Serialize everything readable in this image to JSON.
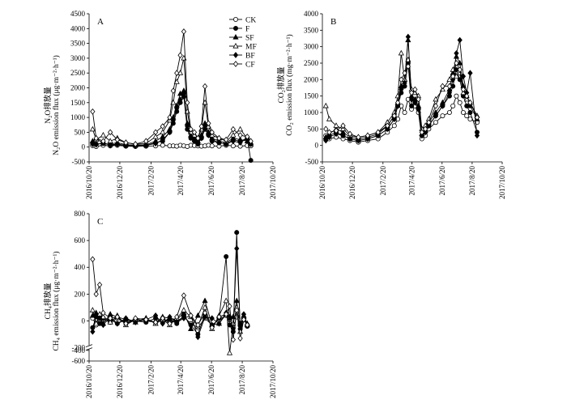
{
  "figure": {
    "legend": {
      "placement": "top-right of panel A",
      "entries": [
        {
          "name": "CK",
          "marker": "open-circle"
        },
        {
          "name": "F",
          "marker": "filled-circle"
        },
        {
          "name": "SF",
          "marker": "filled-triangle"
        },
        {
          "name": "MF",
          "marker": "open-triangle"
        },
        {
          "name": "BF",
          "marker": "filled-diamond"
        },
        {
          "name": "CF",
          "marker": "open-diamond"
        }
      ]
    }
  },
  "chart_data": [
    {
      "panel": "A",
      "type": "line",
      "ylabel_cn": "N₂O排放量",
      "ylabel_en": "N₂O emission flux (μg·m⁻²·h⁻¹)",
      "ylim": [
        -500,
        4500
      ],
      "yticks": [
        "-500",
        "0",
        "500",
        "1000",
        "1500",
        "2000",
        "2500",
        "3000",
        "3500",
        "4000",
        "4500"
      ],
      "xticks": [
        "2016/10/20",
        "2016/12/20",
        "2017/2/20",
        "2017/4/20",
        "2017/6/20",
        "2017/8/20",
        "2017/10/20"
      ],
      "grid": false,
      "x": [
        "2016/10/27",
        "2016/11/3",
        "2016/11/17",
        "2016/12/1",
        "2016/12/15",
        "2017/1/1",
        "2017/1/20",
        "2017/2/10",
        "2017/3/1",
        "2017/3/15",
        "2017/3/29",
        "2017/4/5",
        "2017/4/12",
        "2017/4/19",
        "2017/4/26",
        "2017/5/3",
        "2017/5/10",
        "2017/5/17",
        "2017/5/24",
        "2017/5/31",
        "2017/6/7",
        "2017/6/14",
        "2017/6/21",
        "2017/7/5",
        "2017/7/19",
        "2017/8/2",
        "2017/8/16",
        "2017/8/30",
        "2017/9/6"
      ],
      "series": [
        {
          "name": "CK",
          "values": [
            50,
            20,
            60,
            40,
            60,
            30,
            20,
            30,
            40,
            60,
            40,
            40,
            30,
            60,
            40,
            20,
            60,
            50,
            40,
            30,
            40,
            60,
            40,
            30,
            60,
            40,
            30,
            50,
            40
          ]
        },
        {
          "name": "F",
          "values": [
            150,
            100,
            120,
            80,
            100,
            60,
            80,
            60,
            150,
            200,
            500,
            800,
            1200,
            1500,
            1700,
            600,
            300,
            200,
            100,
            300,
            600,
            400,
            200,
            150,
            100,
            250,
            200,
            300,
            -450
          ]
        },
        {
          "name": "SF",
          "values": [
            200,
            300,
            120,
            100,
            150,
            80,
            60,
            80,
            200,
            350,
            600,
            1000,
            1400,
            1800,
            1900,
            800,
            400,
            300,
            200,
            400,
            800,
            500,
            300,
            200,
            150,
            300,
            250,
            200,
            100
          ]
        },
        {
          "name": "MF",
          "values": [
            600,
            250,
            400,
            200,
            300,
            150,
            100,
            120,
            350,
            500,
            900,
            1500,
            2200,
            2500,
            3000,
            1200,
            500,
            400,
            300,
            600,
            1500,
            700,
            400,
            300,
            200,
            400,
            600,
            300,
            150
          ]
        },
        {
          "name": "BF",
          "values": [
            100,
            80,
            150,
            60,
            90,
            50,
            40,
            60,
            120,
            250,
            500,
            900,
            1300,
            1600,
            1800,
            700,
            350,
            250,
            150,
            300,
            700,
            400,
            250,
            150,
            100,
            200,
            150,
            300,
            100
          ]
        },
        {
          "name": "CF",
          "values": [
            1200,
            300,
            200,
            500,
            250,
            150,
            100,
            200,
            500,
            700,
            1000,
            1900,
            2500,
            3100,
            3900,
            1500,
            600,
            500,
            300,
            700,
            2050,
            800,
            500,
            300,
            250,
            600,
            400,
            350,
            200
          ]
        }
      ]
    },
    {
      "panel": "B",
      "type": "line",
      "ylabel_cn": "CO₂排放量",
      "ylabel_en": "CO₂ emission flux (mg·m⁻²·h⁻¹)",
      "ylim": [
        -500,
        4000
      ],
      "yticks": [
        "-500",
        "0",
        "500",
        "1000",
        "1500",
        "2000",
        "2500",
        "3000",
        "3500",
        "4000"
      ],
      "xticks": [
        "2016/10/20",
        "2016/12/20",
        "2017/2/20",
        "2017/4/20",
        "2017/6/20",
        "2017/8/20",
        "2017/10/20"
      ],
      "grid": false,
      "x": [
        "2016/10/27",
        "2016/11/3",
        "2016/11/17",
        "2016/12/1",
        "2016/12/15",
        "2017/1/1",
        "2017/1/20",
        "2017/2/10",
        "2017/3/1",
        "2017/3/15",
        "2017/3/22",
        "2017/3/29",
        "2017/4/5",
        "2017/4/12",
        "2017/4/19",
        "2017/4/26",
        "2017/5/3",
        "2017/5/10",
        "2017/5/17",
        "2017/5/24",
        "2017/6/7",
        "2017/6/21",
        "2017/7/5",
        "2017/7/12",
        "2017/7/19",
        "2017/7/26",
        "2017/8/2",
        "2017/8/9",
        "2017/8/16",
        "2017/8/30"
      ],
      "series": [
        {
          "name": "CK",
          "values": [
            300,
            200,
            250,
            200,
            150,
            100,
            150,
            200,
            400,
            600,
            800,
            1200,
            1000,
            1400,
            1100,
            1200,
            1000,
            200,
            300,
            500,
            700,
            900,
            1000,
            1200,
            1500,
            1300,
            1000,
            900,
            800,
            700
          ]
        },
        {
          "name": "F",
          "values": [
            200,
            300,
            400,
            300,
            200,
            150,
            200,
            300,
            500,
            800,
            1200,
            1600,
            1800,
            2500,
            1200,
            1300,
            1100,
            300,
            400,
            600,
            900,
            1200,
            1500,
            1800,
            2300,
            2000,
            1500,
            1200,
            1000,
            400
          ]
        },
        {
          "name": "SF",
          "values": [
            250,
            350,
            500,
            400,
            250,
            200,
            250,
            350,
            600,
            900,
            1300,
            1800,
            2000,
            3200,
            1500,
            1400,
            1200,
            350,
            450,
            700,
            1000,
            1300,
            1700,
            2200,
            2700,
            2500,
            1800,
            1500,
            1200,
            800
          ]
        },
        {
          "name": "MF",
          "values": [
            1200,
            800,
            600,
            500,
            300,
            250,
            300,
            400,
            700,
            1000,
            1500,
            2800,
            2000,
            2600,
            1700,
            1600,
            1500,
            500,
            600,
            800,
            1400,
            1700,
            2000,
            2300,
            2100,
            2200,
            1600,
            1400,
            1300,
            900
          ]
        },
        {
          "name": "BF",
          "values": [
            150,
            250,
            350,
            300,
            200,
            150,
            200,
            300,
            500,
            800,
            1200,
            1700,
            1900,
            3300,
            1400,
            1300,
            1100,
            300,
            400,
            600,
            900,
            1200,
            1600,
            2000,
            2800,
            3200,
            2100,
            1600,
            2200,
            300
          ]
        },
        {
          "name": "CF",
          "values": [
            500,
            400,
            450,
            600,
            350,
            250,
            300,
            400,
            600,
            900,
            1300,
            2000,
            2200,
            2400,
            1600,
            1700,
            1400,
            400,
            500,
            700,
            1200,
            1800,
            1800,
            2100,
            2500,
            2300,
            1700,
            1500,
            1300,
            850
          ]
        }
      ]
    },
    {
      "panel": "C",
      "type": "line",
      "ylabel_cn": "CH₄排放量",
      "ylabel_en": "CH₄ emission flux (μg·m⁻²·h⁻¹)",
      "ylim": [
        -600,
        800
      ],
      "axis_break": [
        -350,
        -200
      ],
      "yticks": [
        "-600",
        "-400",
        "-200",
        "0",
        "200",
        "400",
        "600",
        "800"
      ],
      "xticks": [
        "2016/10/20",
        "2016/12/20",
        "2017/2/20",
        "2017/4/20",
        "2017/6/20",
        "2017/8/20",
        "2017/10/20"
      ],
      "grid": false,
      "x": [
        "2016/10/27",
        "2016/11/3",
        "2016/11/10",
        "2016/11/17",
        "2016/12/1",
        "2016/12/15",
        "2017/1/1",
        "2017/1/20",
        "2017/2/10",
        "2017/3/1",
        "2017/3/15",
        "2017/3/29",
        "2017/4/12",
        "2017/4/26",
        "2017/5/10",
        "2017/5/24",
        "2017/6/7",
        "2017/6/21",
        "2017/7/5",
        "2017/7/19",
        "2017/7/26",
        "2017/8/2",
        "2017/8/9",
        "2017/8/16",
        "2017/8/23",
        "2017/8/30"
      ],
      "series": [
        {
          "name": "CK",
          "values": [
            20,
            -30,
            40,
            10,
            -10,
            20,
            -20,
            10,
            0,
            -10,
            20,
            -10,
            0,
            30,
            -20,
            -50,
            20,
            -30,
            10,
            40,
            -20,
            -50,
            30,
            -20,
            10,
            -30
          ]
        },
        {
          "name": "F",
          "values": [
            -50,
            30,
            -20,
            20,
            10,
            -20,
            10,
            0,
            -10,
            20,
            -10,
            10,
            -20,
            40,
            -30,
            -100,
            50,
            -40,
            20,
            480,
            -30,
            -80,
            660,
            -60,
            20,
            -40
          ]
        },
        {
          "name": "SF",
          "values": [
            40,
            60,
            30,
            -20,
            50,
            30,
            10,
            -10,
            20,
            -20,
            30,
            20,
            10,
            60,
            -60,
            40,
            150,
            -30,
            -20,
            50,
            20,
            30,
            150,
            -20,
            40,
            -20
          ]
        },
        {
          "name": "MF",
          "values": [
            80,
            -20,
            50,
            30,
            -10,
            40,
            -30,
            10,
            20,
            -20,
            10,
            -30,
            20,
            80,
            30,
            -40,
            100,
            -60,
            40,
            150,
            -450,
            -20,
            100,
            -80,
            30,
            -30
          ]
        },
        {
          "name": "BF",
          "values": [
            -80,
            50,
            20,
            -30,
            30,
            -20,
            20,
            -10,
            10,
            40,
            -20,
            30,
            -10,
            20,
            40,
            -120,
            30,
            20,
            -20,
            60,
            30,
            -60,
            540,
            -40,
            50,
            -30
          ]
        },
        {
          "name": "CF",
          "values": [
            460,
            200,
            270,
            60,
            20,
            30,
            -20,
            20,
            10,
            -10,
            20,
            -20,
            30,
            190,
            40,
            -30,
            60,
            -50,
            30,
            50,
            110,
            -140,
            80,
            -130,
            10,
            -30
          ]
        }
      ]
    }
  ]
}
